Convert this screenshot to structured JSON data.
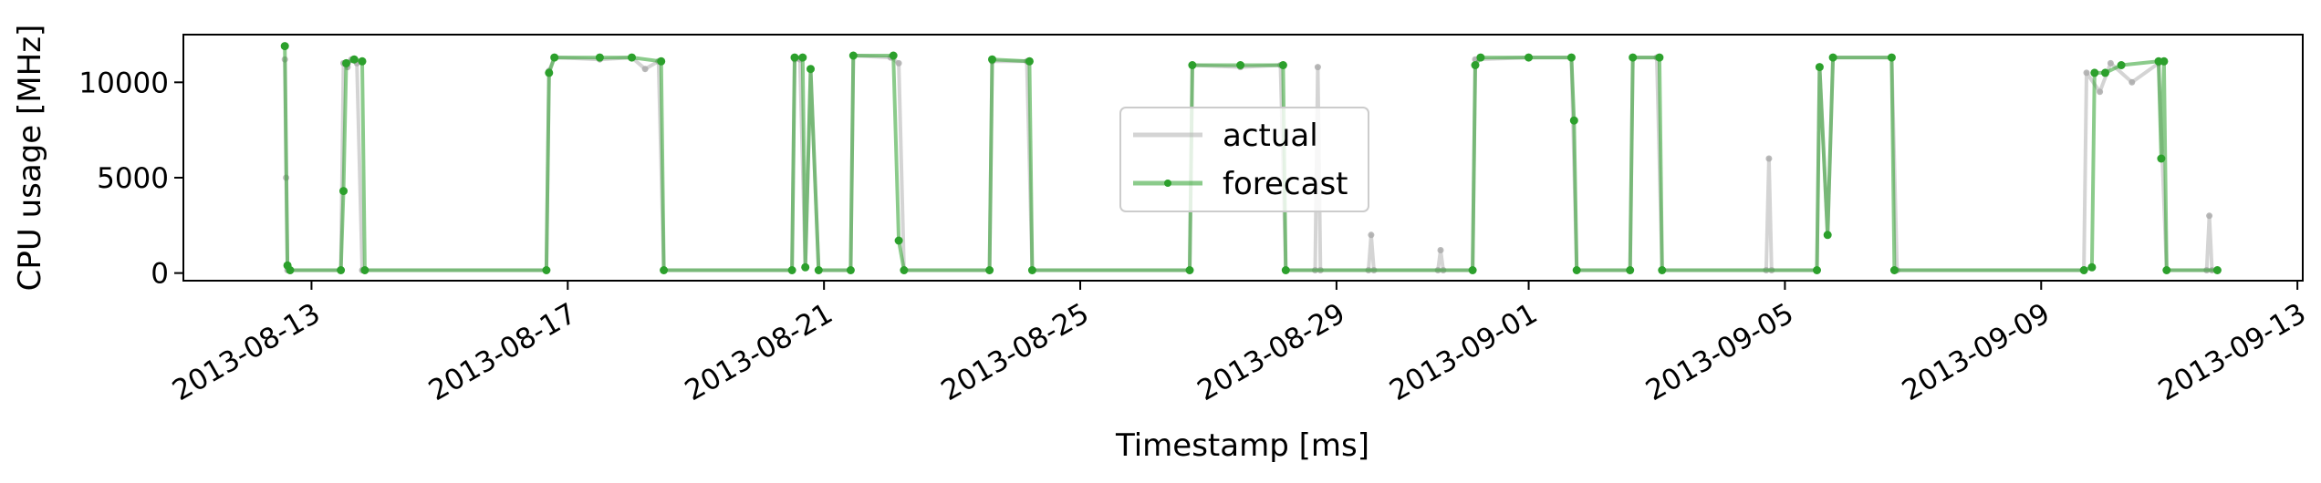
{
  "chart_data": {
    "type": "line",
    "title": "",
    "xlabel": "Timestamp [ms]",
    "ylabel": "CPU usage [MHz]",
    "xlim": [
      "2013-08-11T00:00",
      "2013-09-13T02:00"
    ],
    "ylim": [
      -400,
      12500
    ],
    "x_ticks": [
      "2013-08-13",
      "2013-08-17",
      "2013-08-21",
      "2013-08-25",
      "2013-08-29",
      "2013-09-01",
      "2013-09-05",
      "2013-09-09",
      "2013-09-13"
    ],
    "y_ticks": [
      0,
      5000,
      10000
    ],
    "grid": false,
    "legend_position": "upper-center",
    "series": [
      {
        "name": "actual",
        "color": "#a9a9a9",
        "points": [
          [
            "2013-08-12T14:00",
            11200
          ],
          [
            "2013-08-12T14:30",
            5000
          ],
          [
            "2013-08-12T15:00",
            150
          ],
          [
            "2013-08-13T11:00",
            150
          ],
          [
            "2013-08-13T12:00",
            11000
          ],
          [
            "2013-08-13T13:30",
            10800
          ],
          [
            "2013-08-13T15:00",
            11200
          ],
          [
            "2013-08-13T17:00",
            11000
          ],
          [
            "2013-08-13T19:00",
            150
          ],
          [
            "2013-08-16T16:00",
            150
          ],
          [
            "2013-08-16T17:00",
            10600
          ],
          [
            "2013-08-16T19:00",
            11300
          ],
          [
            "2013-08-17T12:00",
            11200
          ],
          [
            "2013-08-18T00:00",
            11300
          ],
          [
            "2013-08-18T05:00",
            10700
          ],
          [
            "2013-08-18T10:00",
            11100
          ],
          [
            "2013-08-18T12:00",
            150
          ],
          [
            "2013-08-20T12:00",
            150
          ],
          [
            "2013-08-20T13:00",
            11200
          ],
          [
            "2013-08-20T15:00",
            11200
          ],
          [
            "2013-08-20T17:00",
            300
          ],
          [
            "2013-08-20T19:00",
            10700
          ],
          [
            "2013-08-20T22:00",
            150
          ],
          [
            "2013-08-21T10:00",
            150
          ],
          [
            "2013-08-21T11:00",
            11400
          ],
          [
            "2013-08-22T01:00",
            11300
          ],
          [
            "2013-08-22T04:00",
            11000
          ],
          [
            "2013-08-22T06:00",
            150
          ],
          [
            "2013-08-23T14:00",
            150
          ],
          [
            "2013-08-23T15:00",
            11100
          ],
          [
            "2013-08-24T04:00",
            11100
          ],
          [
            "2013-08-24T06:00",
            150
          ],
          [
            "2013-08-26T17:00",
            150
          ],
          [
            "2013-08-26T18:00",
            10900
          ],
          [
            "2013-08-27T12:00",
            10800
          ],
          [
            "2013-08-28T03:00",
            10900
          ],
          [
            "2013-08-28T05:00",
            150
          ],
          [
            "2013-08-28T16:00",
            150
          ],
          [
            "2013-08-28T17:00",
            10800
          ],
          [
            "2013-08-28T18:00",
            150
          ],
          [
            "2013-08-29T12:00",
            150
          ],
          [
            "2013-08-29T13:00",
            2000
          ],
          [
            "2013-08-29T14:00",
            150
          ],
          [
            "2013-08-30T14:00",
            150
          ],
          [
            "2013-08-30T15:00",
            1200
          ],
          [
            "2013-08-30T16:00",
            150
          ],
          [
            "2013-08-31T03:00",
            150
          ],
          [
            "2013-08-31T04:00",
            11200
          ],
          [
            "2013-09-01T00:00",
            11300
          ],
          [
            "2013-09-01T16:00",
            11300
          ],
          [
            "2013-09-01T18:00",
            150
          ],
          [
            "2013-09-02T14:00",
            150
          ],
          [
            "2013-09-02T15:00",
            11300
          ],
          [
            "2013-09-03T00:00",
            11300
          ],
          [
            "2013-09-03T02:00",
            150
          ],
          [
            "2013-09-04T17:00",
            150
          ],
          [
            "2013-09-04T18:00",
            6000
          ],
          [
            "2013-09-04T19:00",
            150
          ],
          [
            "2013-09-05T12:00",
            150
          ],
          [
            "2013-09-05T13:00",
            10800
          ],
          [
            "2013-09-05T16:00",
            2000
          ],
          [
            "2013-09-05T18:00",
            11300
          ],
          [
            "2013-09-06T16:00",
            11300
          ],
          [
            "2013-09-06T18:00",
            150
          ],
          [
            "2013-09-09T16:00",
            150
          ],
          [
            "2013-09-09T17:00",
            10500
          ],
          [
            "2013-09-09T22:00",
            9500
          ],
          [
            "2013-09-10T02:00",
            11000
          ],
          [
            "2013-09-10T10:00",
            10000
          ],
          [
            "2013-09-10T20:00",
            11000
          ],
          [
            "2013-09-10T23:00",
            150
          ],
          [
            "2013-09-11T14:00",
            150
          ],
          [
            "2013-09-11T15:00",
            3000
          ],
          [
            "2013-09-11T16:00",
            150
          ],
          [
            "2013-09-11T18:00",
            150
          ]
        ]
      },
      {
        "name": "forecast",
        "color": "#2ca02c",
        "points": [
          [
            "2013-08-12T14:00",
            11900
          ],
          [
            "2013-08-12T15:00",
            400
          ],
          [
            "2013-08-12T16:00",
            150
          ],
          [
            "2013-08-13T11:00",
            150
          ],
          [
            "2013-08-13T12:00",
            4300
          ],
          [
            "2013-08-13T13:00",
            11000
          ],
          [
            "2013-08-13T16:00",
            11200
          ],
          [
            "2013-08-13T19:00",
            11100
          ],
          [
            "2013-08-13T20:00",
            150
          ],
          [
            "2013-08-16T16:00",
            150
          ],
          [
            "2013-08-16T17:00",
            10500
          ],
          [
            "2013-08-16T19:00",
            11300
          ],
          [
            "2013-08-17T12:00",
            11300
          ],
          [
            "2013-08-18T00:00",
            11300
          ],
          [
            "2013-08-18T11:00",
            11100
          ],
          [
            "2013-08-18T12:00",
            150
          ],
          [
            "2013-08-20T12:00",
            150
          ],
          [
            "2013-08-20T13:00",
            11300
          ],
          [
            "2013-08-20T16:00",
            11300
          ],
          [
            "2013-08-20T17:00",
            300
          ],
          [
            "2013-08-20T19:00",
            10700
          ],
          [
            "2013-08-20T22:00",
            150
          ],
          [
            "2013-08-21T10:00",
            150
          ],
          [
            "2013-08-21T11:00",
            11400
          ],
          [
            "2013-08-22T02:00",
            11400
          ],
          [
            "2013-08-22T04:00",
            1700
          ],
          [
            "2013-08-22T06:00",
            150
          ],
          [
            "2013-08-23T14:00",
            150
          ],
          [
            "2013-08-23T15:00",
            11200
          ],
          [
            "2013-08-24T05:00",
            11100
          ],
          [
            "2013-08-24T06:00",
            150
          ],
          [
            "2013-08-26T17:00",
            150
          ],
          [
            "2013-08-26T18:00",
            10900
          ],
          [
            "2013-08-27T12:00",
            10900
          ],
          [
            "2013-08-28T04:00",
            10900
          ],
          [
            "2013-08-28T05:00",
            150
          ],
          [
            "2013-08-31T03:00",
            150
          ],
          [
            "2013-08-31T04:00",
            10900
          ],
          [
            "2013-08-31T06:00",
            11300
          ],
          [
            "2013-09-01T00:00",
            11300
          ],
          [
            "2013-09-01T16:00",
            11300
          ],
          [
            "2013-09-01T17:00",
            8000
          ],
          [
            "2013-09-01T18:00",
            150
          ],
          [
            "2013-09-02T14:00",
            150
          ],
          [
            "2013-09-02T15:00",
            11300
          ],
          [
            "2013-09-03T01:00",
            11300
          ],
          [
            "2013-09-03T02:00",
            150
          ],
          [
            "2013-09-05T12:00",
            150
          ],
          [
            "2013-09-05T13:00",
            10800
          ],
          [
            "2013-09-05T16:00",
            2000
          ],
          [
            "2013-09-05T18:00",
            11300
          ],
          [
            "2013-09-06T16:00",
            11300
          ],
          [
            "2013-09-06T17:00",
            150
          ],
          [
            "2013-09-09T16:00",
            150
          ],
          [
            "2013-09-09T19:00",
            300
          ],
          [
            "2013-09-09T20:00",
            10500
          ],
          [
            "2013-09-10T00:00",
            10500
          ],
          [
            "2013-09-10T06:00",
            10900
          ],
          [
            "2013-09-10T20:00",
            11100
          ],
          [
            "2013-09-10T21:00",
            6000
          ],
          [
            "2013-09-10T22:00",
            11100
          ],
          [
            "2013-09-10T23:00",
            150
          ],
          [
            "2013-09-11T18:00",
            150
          ]
        ]
      }
    ]
  }
}
